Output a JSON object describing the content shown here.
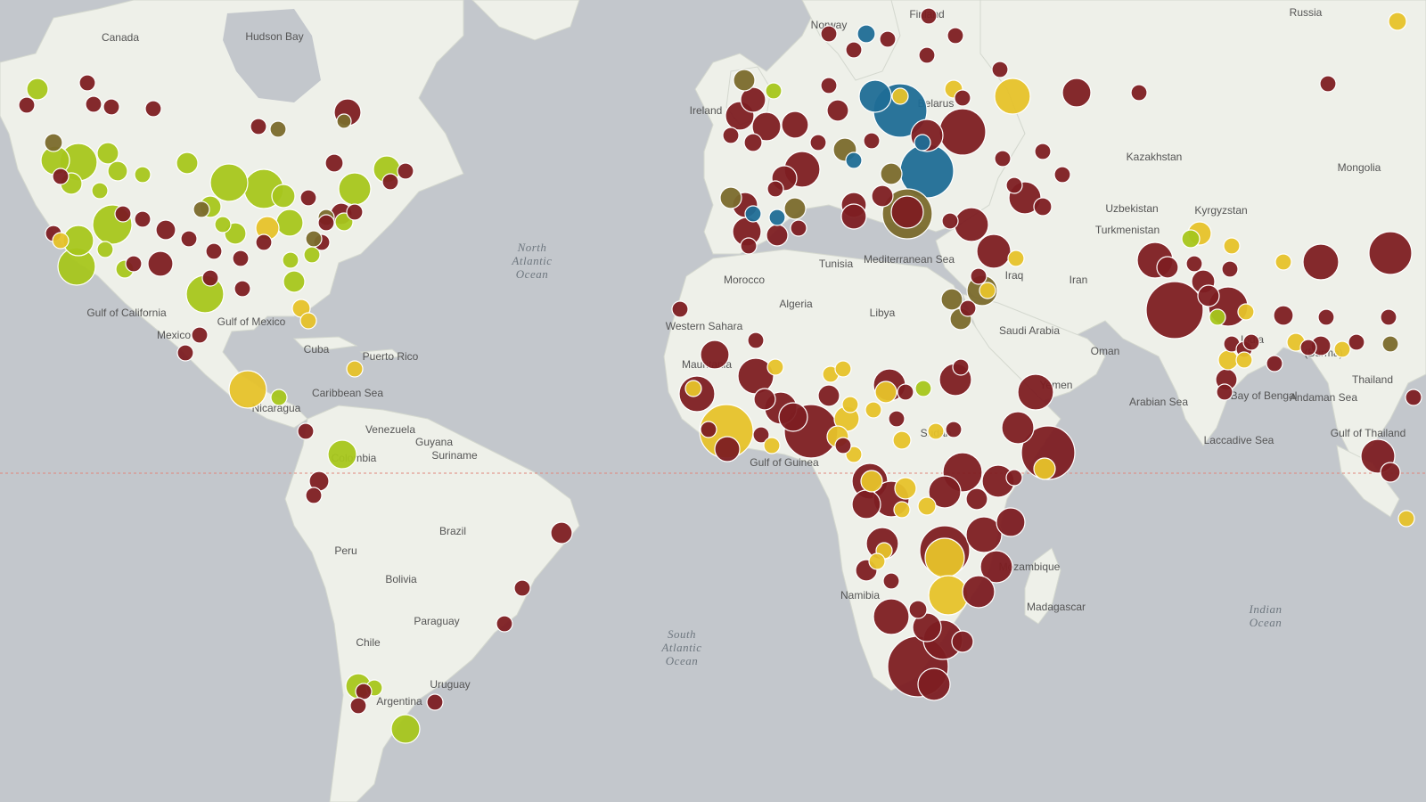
{
  "map": {
    "colors": {
      "ocean": "#c3c7cc",
      "land": "#eef0e9",
      "land_shade": "#e3e8dc",
      "border": "#b9bdb4",
      "equator": "#e0867a",
      "dark_red": "#7d1e22",
      "yellow_green": "#a6c61c",
      "yellow": "#e6c22a",
      "orange": "#e8a72a",
      "blue": "#1f6d96",
      "olive": "#7a6a2c"
    },
    "ocean_labels": [
      {
        "id": "north-atlantic",
        "lines": [
          "North",
          "Atlantic",
          "Ocean"
        ]
      },
      {
        "id": "south-atlantic",
        "lines": [
          "South",
          "Atlantic",
          "Ocean"
        ]
      },
      {
        "id": "indian",
        "lines": [
          "Indian",
          "Ocean"
        ]
      }
    ],
    "place_labels": [
      {
        "id": "canada",
        "text": "Canada"
      },
      {
        "id": "hudson-bay",
        "text": "Hudson Bay"
      },
      {
        "id": "russia",
        "text": "Russia"
      },
      {
        "id": "norway",
        "text": "Norway"
      },
      {
        "id": "finland",
        "text": "Finland"
      },
      {
        "id": "belarus",
        "text": "Belarus"
      },
      {
        "id": "ireland",
        "text": "Ireland"
      },
      {
        "id": "kazakhstan",
        "text": "Kazakhstan"
      },
      {
        "id": "mongolia",
        "text": "Mongolia"
      },
      {
        "id": "uzbekistan",
        "text": "Uzbekistan"
      },
      {
        "id": "kyrgyzstan",
        "text": "Kyrgyzstan"
      },
      {
        "id": "turkmenistan",
        "text": "Turkmenistan"
      },
      {
        "id": "iran",
        "text": "Iran"
      },
      {
        "id": "iraq",
        "text": "Iraq"
      },
      {
        "id": "saudi-arabia",
        "text": "Saudi Arabia"
      },
      {
        "id": "oman",
        "text": "Oman"
      },
      {
        "id": "morocco",
        "text": "Morocco"
      },
      {
        "id": "algeria",
        "text": "Algeria"
      },
      {
        "id": "libya",
        "text": "Libya"
      },
      {
        "id": "tunisia",
        "text": "Tunisia"
      },
      {
        "id": "mediterranean",
        "text": "Mediterranean Sea"
      },
      {
        "id": "western-sahara",
        "text": "Western Sahara"
      },
      {
        "id": "mauritania",
        "text": "Mauritania"
      },
      {
        "id": "sudan",
        "text": "Sudan"
      },
      {
        "id": "yemen",
        "text": "Yemen"
      },
      {
        "id": "arabian-sea",
        "text": "Arabian Sea"
      },
      {
        "id": "india",
        "text": "India"
      },
      {
        "id": "burma",
        "text": "(Burma)"
      },
      {
        "id": "bay-of-bengal",
        "text": "Bay of Bengal"
      },
      {
        "id": "andaman-sea",
        "text": "Andaman Sea"
      },
      {
        "id": "thailand",
        "text": "Thailand"
      },
      {
        "id": "gulf-of-thailand",
        "text": "Gulf of Thailand"
      },
      {
        "id": "laccadive-sea",
        "text": "Laccadive Sea"
      },
      {
        "id": "gulf-of-guinea",
        "text": "Gulf of Guinea"
      },
      {
        "id": "mozambique",
        "text": "Mozambique"
      },
      {
        "id": "madagascar",
        "text": "Madagascar"
      },
      {
        "id": "namibia",
        "text": "Namibia"
      },
      {
        "id": "gulf-of-california",
        "text": "Gulf of California"
      },
      {
        "id": "gulf-of-mexico",
        "text": "Gulf of Mexico"
      },
      {
        "id": "mexico",
        "text": "Mexico"
      },
      {
        "id": "cuba",
        "text": "Cuba"
      },
      {
        "id": "puerto-rico",
        "text": "Puerto Rico"
      },
      {
        "id": "caribbean-sea",
        "text": "Caribbean Sea"
      },
      {
        "id": "nicaragua",
        "text": "Nicaragua"
      },
      {
        "id": "venezuela",
        "text": "Venezuela"
      },
      {
        "id": "colombia",
        "text": "Colombia"
      },
      {
        "id": "guyana",
        "text": "Guyana"
      },
      {
        "id": "suriname",
        "text": "Suriname"
      },
      {
        "id": "brazil",
        "text": "Brazil"
      },
      {
        "id": "peru",
        "text": "Peru"
      },
      {
        "id": "bolivia",
        "text": "Bolivia"
      },
      {
        "id": "paraguay",
        "text": "Paraguay"
      },
      {
        "id": "chile",
        "text": "Chile"
      },
      {
        "id": "uruguay",
        "text": "Uruguay"
      },
      {
        "id": "argentina",
        "text": "Argentina"
      }
    ]
  }
}
